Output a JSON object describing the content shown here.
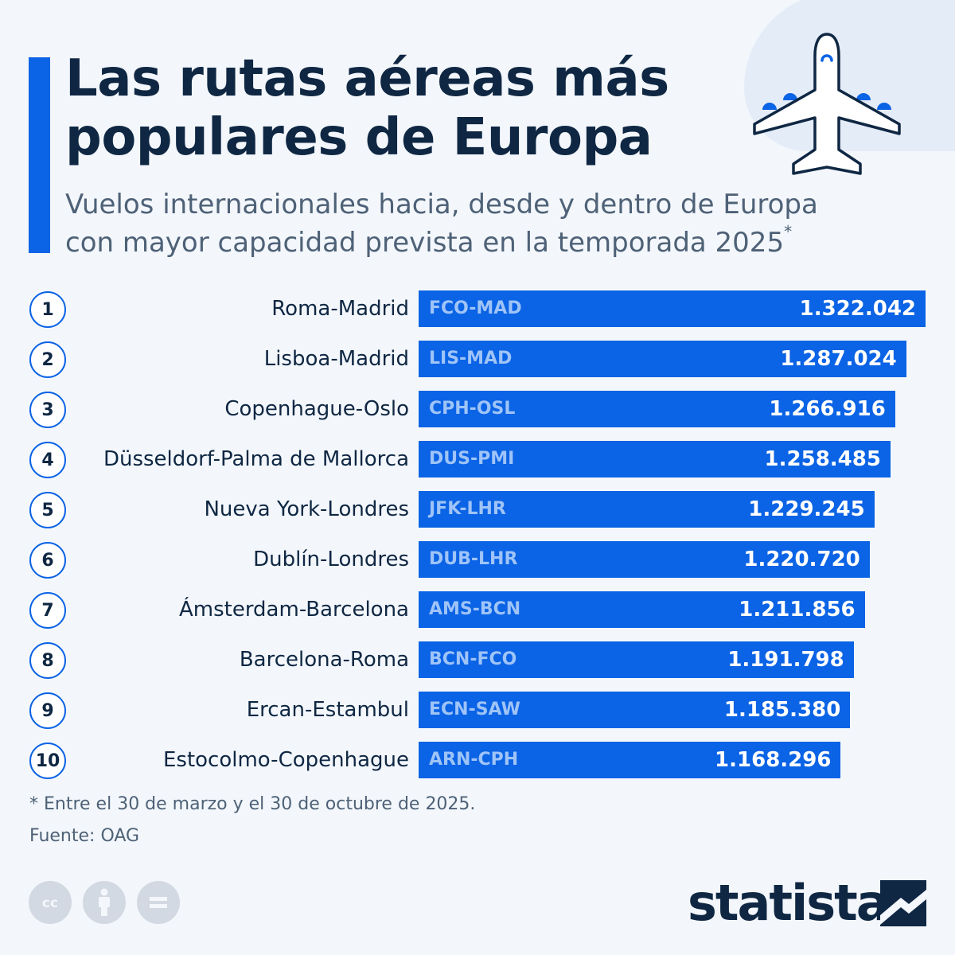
{
  "header": {
    "title": "Las rutas aéreas más populares de Europa",
    "subtitle": "Vuelos internacionales hacia, desde y dentro de Europa con mayor capacidad prevista en la temporada 2025",
    "subtitle_marker": "*"
  },
  "chart_data": {
    "type": "bar",
    "orientation": "horizontal",
    "categories": [
      "Roma-Madrid",
      "Lisboa-Madrid",
      "Copenhague-Oslo",
      "Düsseldorf-Palma de Mallorca",
      "Nueva York-Londres",
      "Dublín-Londres",
      "Ámsterdam-Barcelona",
      "Barcelona-Roma",
      "Ercan-Estambul",
      "Estocolmo-Copenhague"
    ],
    "ranks": [
      "1",
      "2",
      "3",
      "4",
      "5",
      "6",
      "7",
      "8",
      "9",
      "10"
    ],
    "codes": [
      "FCO-MAD",
      "LIS-MAD",
      "CPH-OSL",
      "DUS-PMI",
      "JFK-LHR",
      "DUB-LHR",
      "AMS-BCN",
      "BCN-FCO",
      "ECN-SAW",
      "ARN-CPH"
    ],
    "values": [
      1322042,
      1287024,
      1266916,
      1258485,
      1229245,
      1220720,
      1211856,
      1191798,
      1185380,
      1168296
    ],
    "value_labels": [
      "1.322.042",
      "1.287.024",
      "1.266.916",
      "1.258.485",
      "1.229.245",
      "1.220.720",
      "1.211.856",
      "1.191.798",
      "1.185.380",
      "1.168.296"
    ],
    "bar_color": "#0b63e5"
  },
  "footer": {
    "footnote": "* Entre el 30 de marzo y el 30 de octubre de 2025.",
    "source": "Fuente: OAG",
    "brand": "statista"
  },
  "colors": {
    "accent": "#0b63e5",
    "text_dark": "#0f2743",
    "text_muted": "#4e6177",
    "background": "#f3f7fb"
  },
  "icons": [
    "airplane-icon",
    "cc-icon",
    "attribution-icon",
    "no-derivatives-icon",
    "statista-logo-icon"
  ]
}
